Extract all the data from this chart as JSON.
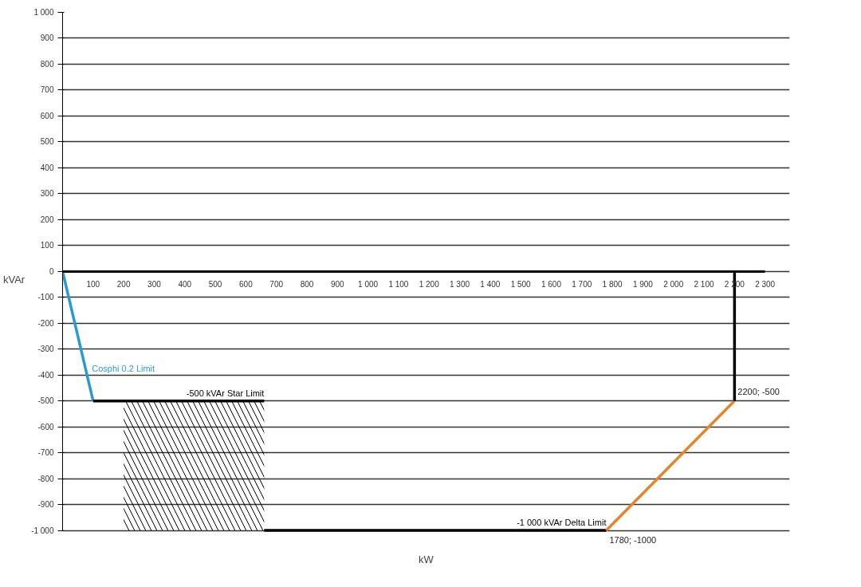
{
  "chart_data": {
    "type": "line",
    "xlabel": "kW",
    "ylabel": "kVAr",
    "xlim": [
      0,
      2300
    ],
    "ylim": [
      -1000,
      1000
    ],
    "xticks": [
      100,
      200,
      300,
      400,
      500,
      600,
      700,
      800,
      900,
      {
        "value": 1000,
        "label": "1 000"
      },
      {
        "value": 1100,
        "label": "1 100"
      },
      {
        "value": 1200,
        "label": "1 200"
      },
      {
        "value": 1300,
        "label": "1 300"
      },
      {
        "value": 1400,
        "label": "1 400"
      },
      {
        "value": 1500,
        "label": "1 500"
      },
      {
        "value": 1600,
        "label": "1 600"
      },
      {
        "value": 1700,
        "label": "1 700"
      },
      {
        "value": 1800,
        "label": "1 800"
      },
      {
        "value": 1900,
        "label": "1 900"
      },
      {
        "value": 2000,
        "label": "2 000"
      },
      {
        "value": 2100,
        "label": "2 100"
      },
      {
        "value": 2200,
        "label": "2 200"
      },
      {
        "value": 2300,
        "label": "2 300"
      }
    ],
    "yticks": [
      {
        "value": -1000,
        "label": "-1 000"
      },
      -900,
      -800,
      -700,
      -600,
      -500,
      -400,
      -300,
      -200,
      -100,
      0,
      100,
      200,
      300,
      400,
      500,
      600,
      700,
      800,
      900,
      {
        "value": 1000,
        "label": "1 000"
      }
    ],
    "grid": "y",
    "series": [
      {
        "type": "histogram",
        "bins": [
          200,
          660
        ],
        "values": [
          500
        ],
        "base": [
          -1000
        ],
        "color": "#000000"
      },
      {
        "name": "Cosphi 0.2 Limit",
        "x": [
          0,
          100
        ],
        "values": [
          0,
          -500
        ],
        "color": "#2a9bd0"
      },
      {
        "name": "-500 kVAr Star Limit",
        "x": [
          100,
          660
        ],
        "values": [
          -500,
          -500
        ],
        "color": "#000000"
      },
      {
        "name": "-1 000 kVAr Delta Limit",
        "x": [
          660,
          1780
        ],
        "values": [
          -1000,
          -1000
        ],
        "color": "#000000"
      },
      {
        "x": [
          1780,
          2200
        ],
        "values": [
          -1000,
          -500
        ],
        "color": "#e8832a"
      },
      {
        "x": [
          2200,
          2200
        ],
        "values": [
          -500,
          0
        ],
        "color": "#000000"
      }
    ],
    "annotations": [
      {
        "text": "2200; -500",
        "x": 2200,
        "y": -500
      },
      {
        "text": "1780; -1000",
        "x": 1780,
        "y": -1000
      }
    ]
  }
}
